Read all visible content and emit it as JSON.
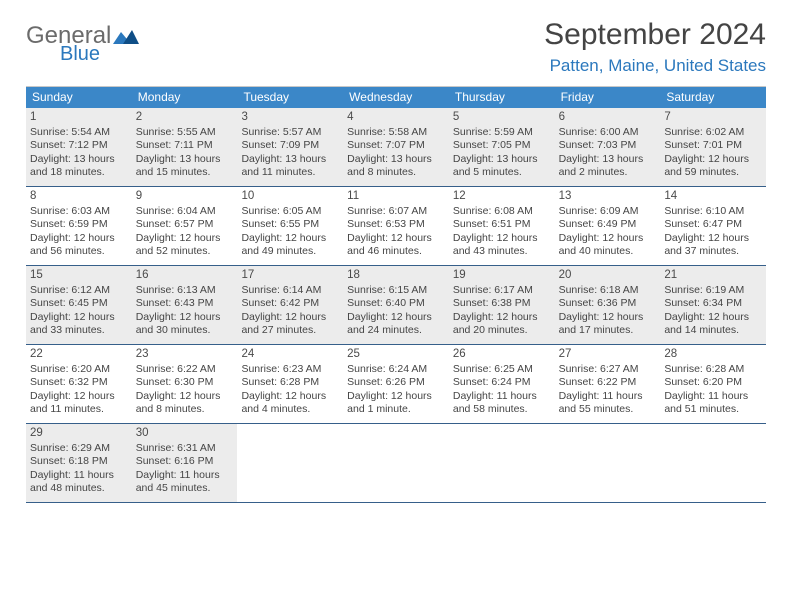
{
  "logo": {
    "line1": "General",
    "line2": "Blue"
  },
  "title": "September 2024",
  "location": "Patten, Maine, United States",
  "colors": {
    "header_bar": "#3b87c8",
    "week_divider": "#365f8a",
    "shaded_cell": "#ececec",
    "logo_gray": "#6b6b6b",
    "logo_blue": "#2b78bd"
  },
  "weekdays": [
    "Sunday",
    "Monday",
    "Tuesday",
    "Wednesday",
    "Thursday",
    "Friday",
    "Saturday"
  ],
  "weeks": [
    [
      {
        "n": "1",
        "sr": "Sunrise: 5:54 AM",
        "ss": "Sunset: 7:12 PM",
        "dl": "Daylight: 13 hours and 18 minutes.",
        "shaded": true
      },
      {
        "n": "2",
        "sr": "Sunrise: 5:55 AM",
        "ss": "Sunset: 7:11 PM",
        "dl": "Daylight: 13 hours and 15 minutes.",
        "shaded": true
      },
      {
        "n": "3",
        "sr": "Sunrise: 5:57 AM",
        "ss": "Sunset: 7:09 PM",
        "dl": "Daylight: 13 hours and 11 minutes.",
        "shaded": true
      },
      {
        "n": "4",
        "sr": "Sunrise: 5:58 AM",
        "ss": "Sunset: 7:07 PM",
        "dl": "Daylight: 13 hours and 8 minutes.",
        "shaded": true
      },
      {
        "n": "5",
        "sr": "Sunrise: 5:59 AM",
        "ss": "Sunset: 7:05 PM",
        "dl": "Daylight: 13 hours and 5 minutes.",
        "shaded": true
      },
      {
        "n": "6",
        "sr": "Sunrise: 6:00 AM",
        "ss": "Sunset: 7:03 PM",
        "dl": "Daylight: 13 hours and 2 minutes.",
        "shaded": true
      },
      {
        "n": "7",
        "sr": "Sunrise: 6:02 AM",
        "ss": "Sunset: 7:01 PM",
        "dl": "Daylight: 12 hours and 59 minutes.",
        "shaded": true
      }
    ],
    [
      {
        "n": "8",
        "sr": "Sunrise: 6:03 AM",
        "ss": "Sunset: 6:59 PM",
        "dl": "Daylight: 12 hours and 56 minutes.",
        "shaded": false
      },
      {
        "n": "9",
        "sr": "Sunrise: 6:04 AM",
        "ss": "Sunset: 6:57 PM",
        "dl": "Daylight: 12 hours and 52 minutes.",
        "shaded": false
      },
      {
        "n": "10",
        "sr": "Sunrise: 6:05 AM",
        "ss": "Sunset: 6:55 PM",
        "dl": "Daylight: 12 hours and 49 minutes.",
        "shaded": false
      },
      {
        "n": "11",
        "sr": "Sunrise: 6:07 AM",
        "ss": "Sunset: 6:53 PM",
        "dl": "Daylight: 12 hours and 46 minutes.",
        "shaded": false
      },
      {
        "n": "12",
        "sr": "Sunrise: 6:08 AM",
        "ss": "Sunset: 6:51 PM",
        "dl": "Daylight: 12 hours and 43 minutes.",
        "shaded": false
      },
      {
        "n": "13",
        "sr": "Sunrise: 6:09 AM",
        "ss": "Sunset: 6:49 PM",
        "dl": "Daylight: 12 hours and 40 minutes.",
        "shaded": false
      },
      {
        "n": "14",
        "sr": "Sunrise: 6:10 AM",
        "ss": "Sunset: 6:47 PM",
        "dl": "Daylight: 12 hours and 37 minutes.",
        "shaded": false
      }
    ],
    [
      {
        "n": "15",
        "sr": "Sunrise: 6:12 AM",
        "ss": "Sunset: 6:45 PM",
        "dl": "Daylight: 12 hours and 33 minutes.",
        "shaded": true
      },
      {
        "n": "16",
        "sr": "Sunrise: 6:13 AM",
        "ss": "Sunset: 6:43 PM",
        "dl": "Daylight: 12 hours and 30 minutes.",
        "shaded": true
      },
      {
        "n": "17",
        "sr": "Sunrise: 6:14 AM",
        "ss": "Sunset: 6:42 PM",
        "dl": "Daylight: 12 hours and 27 minutes.",
        "shaded": true
      },
      {
        "n": "18",
        "sr": "Sunrise: 6:15 AM",
        "ss": "Sunset: 6:40 PM",
        "dl": "Daylight: 12 hours and 24 minutes.",
        "shaded": true
      },
      {
        "n": "19",
        "sr": "Sunrise: 6:17 AM",
        "ss": "Sunset: 6:38 PM",
        "dl": "Daylight: 12 hours and 20 minutes.",
        "shaded": true
      },
      {
        "n": "20",
        "sr": "Sunrise: 6:18 AM",
        "ss": "Sunset: 6:36 PM",
        "dl": "Daylight: 12 hours and 17 minutes.",
        "shaded": true
      },
      {
        "n": "21",
        "sr": "Sunrise: 6:19 AM",
        "ss": "Sunset: 6:34 PM",
        "dl": "Daylight: 12 hours and 14 minutes.",
        "shaded": true
      }
    ],
    [
      {
        "n": "22",
        "sr": "Sunrise: 6:20 AM",
        "ss": "Sunset: 6:32 PM",
        "dl": "Daylight: 12 hours and 11 minutes.",
        "shaded": false
      },
      {
        "n": "23",
        "sr": "Sunrise: 6:22 AM",
        "ss": "Sunset: 6:30 PM",
        "dl": "Daylight: 12 hours and 8 minutes.",
        "shaded": false
      },
      {
        "n": "24",
        "sr": "Sunrise: 6:23 AM",
        "ss": "Sunset: 6:28 PM",
        "dl": "Daylight: 12 hours and 4 minutes.",
        "shaded": false
      },
      {
        "n": "25",
        "sr": "Sunrise: 6:24 AM",
        "ss": "Sunset: 6:26 PM",
        "dl": "Daylight: 12 hours and 1 minute.",
        "shaded": false
      },
      {
        "n": "26",
        "sr": "Sunrise: 6:25 AM",
        "ss": "Sunset: 6:24 PM",
        "dl": "Daylight: 11 hours and 58 minutes.",
        "shaded": false
      },
      {
        "n": "27",
        "sr": "Sunrise: 6:27 AM",
        "ss": "Sunset: 6:22 PM",
        "dl": "Daylight: 11 hours and 55 minutes.",
        "shaded": false
      },
      {
        "n": "28",
        "sr": "Sunrise: 6:28 AM",
        "ss": "Sunset: 6:20 PM",
        "dl": "Daylight: 11 hours and 51 minutes.",
        "shaded": false
      }
    ],
    [
      {
        "n": "29",
        "sr": "Sunrise: 6:29 AM",
        "ss": "Sunset: 6:18 PM",
        "dl": "Daylight: 11 hours and 48 minutes.",
        "shaded": true
      },
      {
        "n": "30",
        "sr": "Sunrise: 6:31 AM",
        "ss": "Sunset: 6:16 PM",
        "dl": "Daylight: 11 hours and 45 minutes.",
        "shaded": true
      },
      {
        "empty": true
      },
      {
        "empty": true
      },
      {
        "empty": true
      },
      {
        "empty": true
      },
      {
        "empty": true
      }
    ]
  ]
}
